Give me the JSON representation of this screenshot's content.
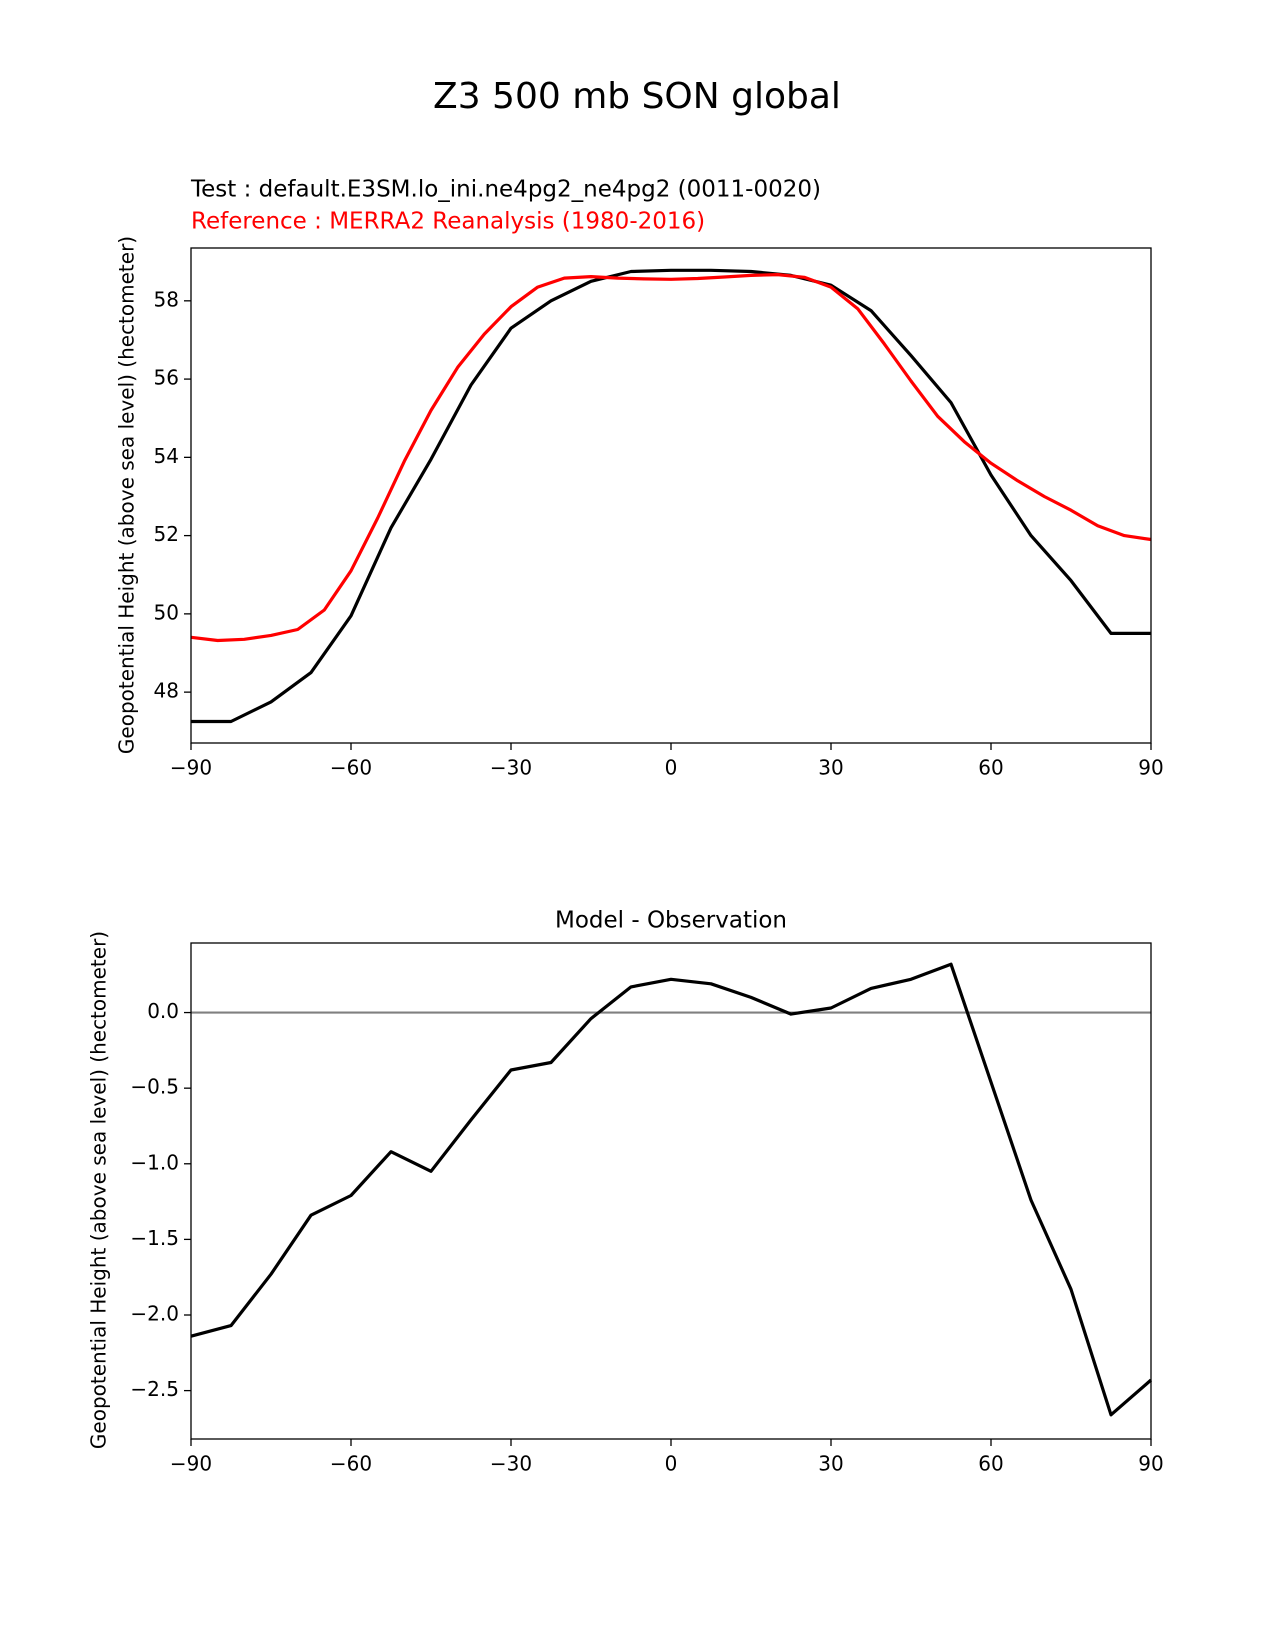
{
  "figure": {
    "suptitle": "Z3 500 mb SON global"
  },
  "chart_data": [
    {
      "type": "line",
      "test_label": "Test : default.E3SM.lo_ini.ne4pg2_ne4pg2 (0011-0020)",
      "ref_label": "Reference : MERRA2 Reanalysis (1980-2016)",
      "xlabel": "",
      "ylabel": "Geopotential Height (above sea level) (hectometer)",
      "xlim": [
        -90,
        90
      ],
      "ylim": [
        46.7,
        59.35
      ],
      "xticks": [
        -90,
        -60,
        -30,
        0,
        30,
        60,
        90
      ],
      "xtick_labels": [
        "−90",
        "−60",
        "−30",
        "0",
        "30",
        "60",
        "90"
      ],
      "yticks": [
        48,
        50,
        52,
        54,
        56,
        58
      ],
      "ytick_labels": [
        "48",
        "50",
        "52",
        "54",
        "56",
        "58"
      ],
      "grid": false,
      "series": [
        {
          "color": "#000000",
          "x": [
            -90,
            -82.5,
            -75,
            -67.5,
            -60,
            -52.5,
            -45,
            -37.5,
            -30,
            -22.5,
            -15,
            -7.5,
            0,
            7.5,
            15,
            22.5,
            30,
            37.5,
            45,
            52.5,
            60,
            67.5,
            75,
            82.5,
            90
          ],
          "y": [
            47.25,
            47.25,
            47.75,
            48.5,
            49.95,
            52.2,
            53.95,
            55.85,
            57.3,
            58.0,
            58.5,
            58.75,
            58.78,
            58.78,
            58.75,
            58.65,
            58.4,
            57.75,
            56.6,
            55.4,
            53.55,
            52.0,
            50.85,
            49.5,
            49.5
          ]
        },
        {
          "color": "#ff0000",
          "x": [
            -90,
            -85,
            -80,
            -75,
            -70,
            -65,
            -60,
            -55,
            -50,
            -45,
            -40,
            -35,
            -30,
            -25,
            -20,
            -15,
            -10,
            -5,
            0,
            5,
            10,
            15,
            20,
            25,
            30,
            35,
            40,
            45,
            50,
            55,
            60,
            65,
            70,
            75,
            80,
            85,
            90
          ],
          "y": [
            49.4,
            49.32,
            49.35,
            49.45,
            49.6,
            50.1,
            51.1,
            52.45,
            53.9,
            55.2,
            56.3,
            57.15,
            57.85,
            58.35,
            58.58,
            58.62,
            58.58,
            58.56,
            58.55,
            58.57,
            58.61,
            58.65,
            58.67,
            58.6,
            58.35,
            57.8,
            56.9,
            55.95,
            55.05,
            54.4,
            53.85,
            53.4,
            53.0,
            52.65,
            52.25,
            52.0,
            51.9
          ]
        }
      ]
    },
    {
      "type": "line",
      "title": "Model - Observation",
      "xlabel": "",
      "ylabel": "Geopotential Height (above sea level) (hectometer)",
      "xlim": [
        -90,
        90
      ],
      "ylim": [
        -2.82,
        0.46
      ],
      "xticks": [
        -90,
        -60,
        -30,
        0,
        30,
        60,
        90
      ],
      "xtick_labels": [
        "−90",
        "−60",
        "−30",
        "0",
        "30",
        "60",
        "90"
      ],
      "yticks": [
        0.0,
        -0.5,
        -1.0,
        -1.5,
        -2.0,
        -2.5
      ],
      "ytick_labels": [
        "0.0",
        "−0.5",
        "−1.0",
        "−1.5",
        "−2.0",
        "−2.5"
      ],
      "grid": false,
      "reference_line": {
        "y": 0,
        "color": "#808080"
      },
      "series": [
        {
          "color": "#000000",
          "x": [
            -90,
            -82.5,
            -75,
            -67.5,
            -60,
            -52.5,
            -45,
            -37.5,
            -30,
            -22.5,
            -15,
            -7.5,
            0,
            7.5,
            15,
            22.5,
            30,
            37.5,
            45,
            52.5,
            60,
            67.5,
            75,
            82.5,
            90
          ],
          "y": [
            -2.14,
            -2.07,
            -1.73,
            -1.34,
            -1.21,
            -0.92,
            -1.05,
            -0.71,
            -0.38,
            -0.33,
            -0.04,
            0.17,
            0.22,
            0.19,
            0.1,
            -0.01,
            0.03,
            0.16,
            0.22,
            0.32,
            -0.46,
            -1.24,
            -1.83,
            -2.66,
            -2.43
          ]
        }
      ]
    }
  ]
}
